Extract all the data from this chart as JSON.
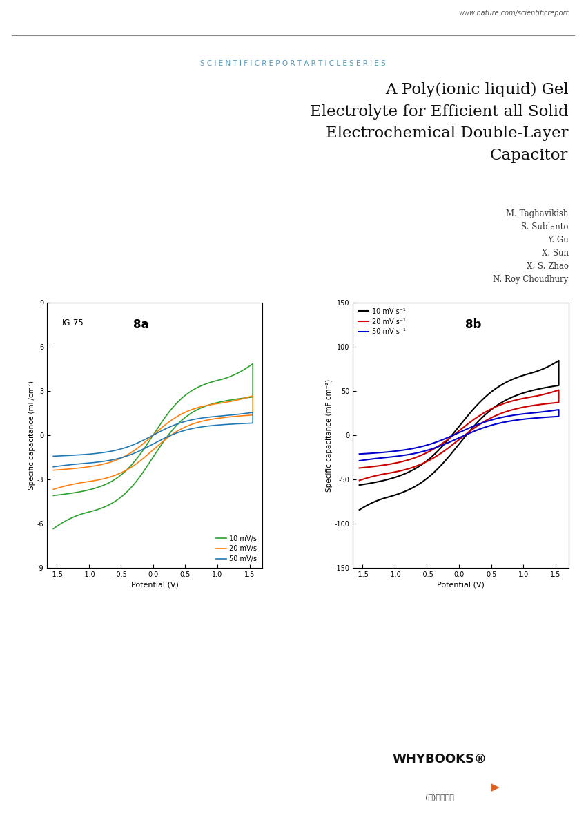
{
  "title_line1": "A Poly(ionic liquid) Gel",
  "title_line2": "Electrolyte for Efficient all Solid",
  "title_line3": "Electrochemical Double-Layer",
  "title_line4": "Capacitor",
  "authors": [
    "M. Taghavikish",
    "S. Subianto",
    "Y. Gu",
    "X. Sun",
    "X. S. Zhao",
    "N. Roy Choudhury"
  ],
  "header_url": "www.nature.com/scientificreport",
  "header_text": "S C I E N T I F I C R E P O R T A R T I C L E S E R I E S",
  "plot8a_label": "IG-75",
  "plot8a_tag": "8a",
  "plot8b_tag": "8b",
  "xlabel": "Potential (V)",
  "ylabel8a": "Specific capacitance (mF/cm²)",
  "ylabel8b": "Specific capacitance (mF cm⁻²)",
  "xlim": [
    -1.65,
    1.7
  ],
  "ylim8a": [
    -9,
    9
  ],
  "ylim8b": [
    -150,
    150
  ],
  "xticks": [
    -1.5,
    -1.0,
    -0.5,
    0.0,
    0.5,
    1.0,
    1.5
  ],
  "yticks8a": [
    -9,
    -6,
    -3,
    0,
    3,
    6,
    9
  ],
  "yticks8b": [
    -150,
    -100,
    -50,
    0,
    50,
    100,
    150
  ],
  "colors8a": {
    "10": "#2ca02c",
    "20": "#ff7f0e",
    "50": "#1f77b4"
  },
  "colors8b": {
    "10": "#000000",
    "20": "#cc0000",
    "50": "#0000cc"
  },
  "legend8a": [
    "10 mV/s",
    "20 mV/s",
    "50 mV/s"
  ],
  "legend8b": [
    "10 mV s⁻¹",
    "20 mV s⁻¹",
    "50 mV s⁻¹"
  ],
  "whybooks_text": "WHYBOOKS®",
  "whybooks_sub": "(주)와이북스",
  "background_color": "#ffffff"
}
